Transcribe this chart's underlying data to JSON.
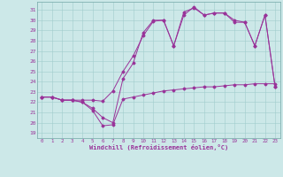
{
  "title": "",
  "xlabel": "Windchill (Refroidissement éolien,°C)",
  "bg_color": "#cce8e8",
  "line_color": "#993399",
  "xlim": [
    -0.5,
    23.5
  ],
  "ylim": [
    18.5,
    31.8
  ],
  "xticks": [
    0,
    1,
    2,
    3,
    4,
    5,
    6,
    7,
    8,
    9,
    10,
    11,
    12,
    13,
    14,
    15,
    16,
    17,
    18,
    19,
    20,
    21,
    22,
    23
  ],
  "yticks": [
    19,
    20,
    21,
    22,
    23,
    24,
    25,
    26,
    27,
    28,
    29,
    30,
    31
  ],
  "line1_x": [
    0,
    1,
    2,
    3,
    4,
    5,
    6,
    7,
    8,
    9,
    10,
    11,
    12,
    13,
    14,
    15,
    16,
    17,
    18,
    19,
    20,
    21,
    22,
    23
  ],
  "line1_y": [
    22.5,
    22.5,
    22.2,
    22.2,
    22.0,
    21.2,
    19.7,
    19.8,
    22.3,
    22.5,
    22.7,
    22.9,
    23.1,
    23.2,
    23.3,
    23.4,
    23.5,
    23.5,
    23.6,
    23.7,
    23.7,
    23.8,
    23.8,
    23.8
  ],
  "line2_x": [
    0,
    1,
    2,
    3,
    4,
    5,
    6,
    7,
    8,
    9,
    10,
    11,
    12,
    13,
    14,
    15,
    16,
    17,
    18,
    19,
    20,
    21,
    22,
    23
  ],
  "line2_y": [
    22.5,
    22.5,
    22.2,
    22.2,
    22.2,
    22.2,
    22.1,
    23.1,
    25.0,
    26.5,
    28.5,
    29.9,
    30.0,
    27.5,
    30.5,
    31.3,
    30.5,
    30.7,
    30.7,
    30.0,
    29.8,
    27.5,
    30.5,
    23.5
  ],
  "line3_x": [
    0,
    1,
    2,
    3,
    4,
    5,
    6,
    7,
    8,
    9,
    10,
    11,
    12,
    13,
    14,
    15,
    16,
    17,
    18,
    19,
    20,
    21,
    22,
    23
  ],
  "line3_y": [
    22.5,
    22.5,
    22.2,
    22.2,
    22.0,
    21.4,
    20.5,
    20.0,
    24.3,
    25.8,
    28.8,
    30.0,
    30.0,
    27.5,
    30.8,
    31.2,
    30.5,
    30.7,
    30.7,
    29.8,
    29.8,
    27.5,
    30.5,
    23.5
  ]
}
